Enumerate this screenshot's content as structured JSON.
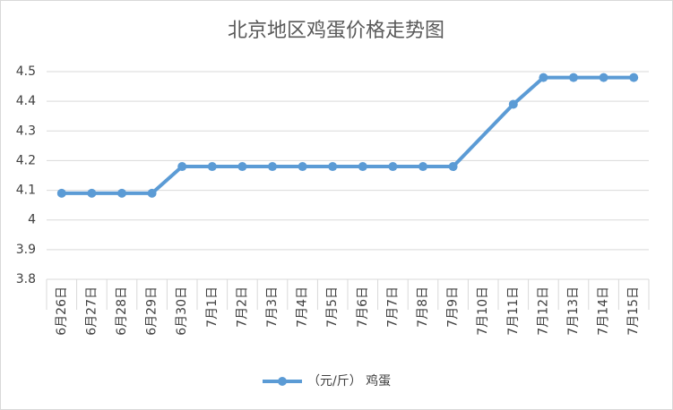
{
  "chart_data": {
    "type": "line",
    "title": "北京地区鸡蛋价格走势图",
    "categories": [
      "6月26日",
      "6月27日",
      "6月28日",
      "6月29日",
      "6月30日",
      "7月1日",
      "7月2日",
      "7月3日",
      "7月4日",
      "7月5日",
      "7月6日",
      "7月7日",
      "7月8日",
      "7月9日",
      "7月10日",
      "7月11日",
      "7月12日",
      "7月13日",
      "7月14日",
      "7月15日"
    ],
    "series": [
      {
        "name": "（元/斤） 鸡蛋",
        "color": "#5b9bd5",
        "values": [
          4.09,
          4.09,
          4.09,
          4.09,
          4.18,
          4.18,
          4.18,
          4.18,
          4.18,
          4.18,
          4.18,
          4.18,
          4.18,
          4.18,
          null,
          4.39,
          4.48,
          4.48,
          4.48,
          4.48
        ]
      }
    ],
    "ylim": [
      3.8,
      4.5
    ],
    "yticks": [
      3.8,
      3.9,
      4,
      4.1,
      4.2,
      4.3,
      4.4,
      4.5
    ],
    "grid": true,
    "connect_gaps": true,
    "legend": "bottom"
  }
}
